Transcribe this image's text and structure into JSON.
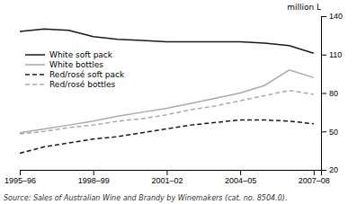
{
  "chart_data": {
    "type": "line",
    "x": [
      1995.5,
      1996.5,
      1997.5,
      1998.5,
      1999.5,
      2000.5,
      2001.5,
      2002.5,
      2003.5,
      2004.5,
      2005.5,
      2006.5,
      2007.5
    ],
    "series": [
      {
        "name": "White soft pack",
        "color": "#1a1a1a",
        "line_style": "solid",
        "values": [
          128,
          130,
          129,
          124,
          122,
          121,
          120,
          120,
          120,
          120,
          119,
          117,
          111
        ]
      },
      {
        "name": "White bottles",
        "color": "#aaaaaa",
        "line_style": "solid",
        "values": [
          49,
          52,
          55,
          58,
          62,
          65,
          68,
          72,
          76,
          80,
          86,
          98,
          92
        ]
      },
      {
        "name": "Red/rosé soft pack",
        "color": "#1a1a1a",
        "line_style": "dashed",
        "values": [
          33,
          38,
          41,
          44,
          46,
          49,
          52,
          55,
          57,
          59,
          59,
          58,
          56
        ]
      },
      {
        "name": "Red/rosé bottles",
        "color": "#aaaaaa",
        "line_style": "dashed",
        "values": [
          48,
          50,
          53,
          55,
          58,
          60,
          63,
          67,
          70,
          74,
          78,
          82,
          79
        ]
      }
    ],
    "xlim": [
      1995.5,
      2007.8
    ],
    "xticks": [
      {
        "value": 1995.5,
        "label": "1995–96"
      },
      {
        "value": 1998.5,
        "label": "1998–99"
      },
      {
        "value": 2001.5,
        "label": "2001–02"
      },
      {
        "value": 2004.5,
        "label": "2004–05"
      },
      {
        "value": 2007.5,
        "label": "2007–08"
      }
    ],
    "ylim": [
      20,
      140
    ],
    "yticks": [
      20,
      50,
      80,
      110,
      140
    ],
    "ylabel": "million L",
    "annotations": [
      "Source:  Sales of Australian Wine and Brandy by Winemakers (cat. no. 8504.0)."
    ],
    "legend": "upper left",
    "grid": false
  }
}
